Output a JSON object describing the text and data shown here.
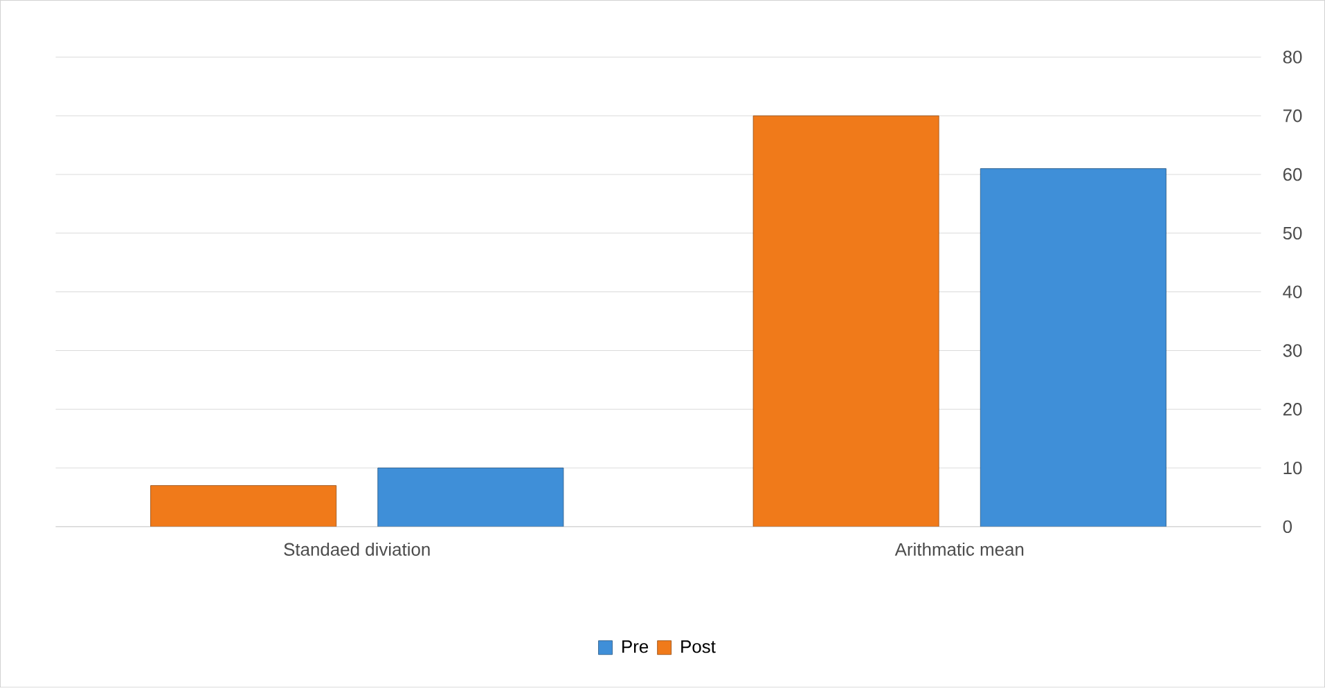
{
  "chart_data": {
    "type": "bar",
    "categories": [
      "Standaed diviation",
      "Arithmatic mean"
    ],
    "series": [
      {
        "name": "Post",
        "color": "#f07a1a",
        "values": [
          7,
          70
        ]
      },
      {
        "name": "Pre",
        "color": "#3f8fd8",
        "values": [
          10,
          61
        ]
      }
    ],
    "ylim": [
      0,
      80
    ],
    "yticks": [
      0,
      10,
      20,
      30,
      40,
      50,
      60,
      70,
      80
    ],
    "grid": "y",
    "legend": "bottom"
  }
}
